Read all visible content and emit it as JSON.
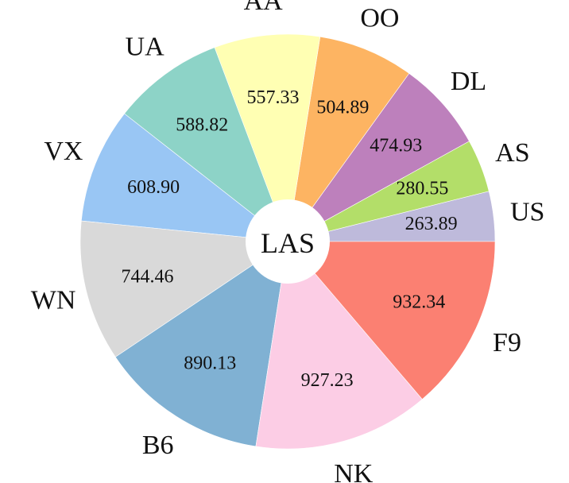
{
  "chart_data": {
    "type": "pie",
    "center_label": "LAS",
    "donut": true,
    "start": "right (3 o'clock)",
    "direction": "counter-clockwise",
    "categories": [
      "US",
      "AS",
      "DL",
      "OO",
      "AA",
      "UA",
      "VX",
      "WN",
      "B6",
      "NK",
      "F9"
    ],
    "values": [
      263.89,
      280.55,
      474.93,
      504.89,
      557.33,
      588.82,
      608.9,
      744.46,
      890.13,
      927.23,
      932.34
    ],
    "value_labels": [
      "263.89",
      "280.55",
      "474.93",
      "504.89",
      "557.33",
      "588.82",
      "608.90",
      "744.46",
      "890.13",
      "927.23",
      "932.34"
    ],
    "colors": [
      "#bebadb",
      "#b3de69",
      "#bd80bc",
      "#fdb462",
      "#ffffb3",
      "#8dd3c7",
      "#99c6f4",
      "#d9d9d9",
      "#80b1d3",
      "#fccde5",
      "#fb8072"
    ]
  }
}
